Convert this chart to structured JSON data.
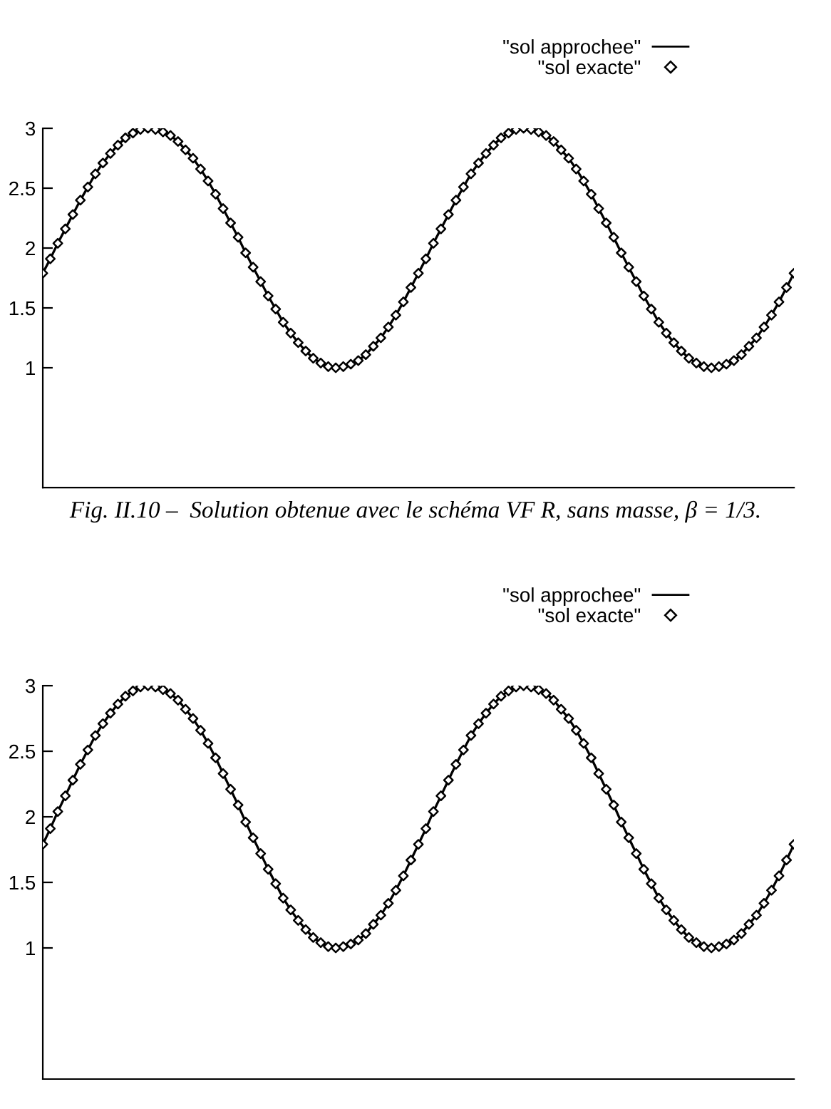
{
  "chart_data": [
    {
      "type": "line",
      "categories": [
        null,
        null,
        null,
        null,
        null,
        null,
        null,
        null,
        null,
        null,
        null,
        null,
        null,
        null,
        null,
        null,
        null,
        null,
        null,
        null,
        null,
        null,
        null,
        null,
        null,
        null,
        null,
        null,
        null,
        null,
        null,
        null,
        null,
        null,
        null,
        null,
        null,
        null,
        null,
        null,
        null,
        null,
        null,
        null,
        null,
        null,
        null,
        null,
        null,
        null,
        null,
        null,
        null,
        null,
        null,
        null,
        null,
        null,
        null,
        null,
        null,
        null,
        null,
        null,
        null,
        null,
        null,
        null,
        null,
        null,
        null,
        null,
        null,
        null,
        null,
        null,
        null,
        null,
        null,
        null,
        null,
        null,
        null,
        null,
        null,
        null,
        null,
        null,
        null,
        null,
        null,
        null,
        null,
        null,
        null,
        null,
        null,
        null,
        null,
        null,
        null
      ],
      "series": [
        {
          "name": "\"sol approchee\"",
          "color": "#000000",
          "values": [
            1.79,
            1.91,
            2.04,
            2.16,
            2.28,
            2.4,
            2.51,
            2.62,
            2.71,
            2.79,
            2.86,
            2.92,
            2.96,
            2.99,
            3.0,
            2.99,
            2.97,
            2.94,
            2.89,
            2.82,
            2.75,
            2.66,
            2.56,
            2.45,
            2.33,
            2.21,
            2.09,
            1.96,
            1.84,
            1.72,
            1.6,
            1.49,
            1.38,
            1.29,
            1.21,
            1.14,
            1.08,
            1.04,
            1.01,
            1.0,
            1.01,
            1.03,
            1.06,
            1.11,
            1.18,
            1.25,
            1.34,
            1.44,
            1.55,
            1.67,
            1.79,
            1.91,
            2.04,
            2.16,
            2.28,
            2.4,
            2.51,
            2.62,
            2.71,
            2.79,
            2.86,
            2.92,
            2.96,
            2.99,
            3.0,
            2.99,
            2.97,
            2.94,
            2.89,
            2.82,
            2.75,
            2.66,
            2.56,
            2.45,
            2.33,
            2.21,
            2.09,
            1.96,
            1.84,
            1.72,
            1.6,
            1.49,
            1.38,
            1.29,
            1.21,
            1.14,
            1.08,
            1.04,
            1.01,
            1.0,
            1.01,
            1.03,
            1.06,
            1.11,
            1.18,
            1.25,
            1.34,
            1.44,
            1.55,
            1.67,
            1.79
          ]
        },
        {
          "name": "\"sol exacte\"",
          "type": "scatter",
          "marker": "diamond",
          "color": "#000000",
          "values": [
            1.79,
            1.91,
            2.04,
            2.16,
            2.28,
            2.4,
            2.51,
            2.62,
            2.71,
            2.79,
            2.86,
            2.92,
            2.96,
            2.99,
            3.0,
            2.99,
            2.97,
            2.94,
            2.89,
            2.82,
            2.75,
            2.66,
            2.56,
            2.45,
            2.33,
            2.21,
            2.09,
            1.96,
            1.84,
            1.72,
            1.6,
            1.49,
            1.38,
            1.29,
            1.21,
            1.14,
            1.08,
            1.04,
            1.01,
            1.0,
            1.01,
            1.03,
            1.06,
            1.11,
            1.18,
            1.25,
            1.34,
            1.44,
            1.55,
            1.67,
            1.79,
            1.91,
            2.04,
            2.16,
            2.28,
            2.4,
            2.51,
            2.62,
            2.71,
            2.79,
            2.86,
            2.92,
            2.96,
            2.99,
            3.0,
            2.99,
            2.97,
            2.94,
            2.89,
            2.82,
            2.75,
            2.66,
            2.56,
            2.45,
            2.33,
            2.21,
            2.09,
            1.96,
            1.84,
            1.72,
            1.6,
            1.49,
            1.38,
            1.29,
            1.21,
            1.14,
            1.08,
            1.04,
            1.01,
            1.0,
            1.01,
            1.03,
            1.06,
            1.11,
            1.18,
            1.25,
            1.34,
            1.44,
            1.55,
            1.67,
            1.79
          ]
        }
      ],
      "ylim": [
        0,
        3
      ],
      "yticks": [
        1,
        1.5,
        2,
        2.5,
        3
      ],
      "grid": false,
      "legend": "top right",
      "tick_labels": "y",
      "annotations": [
        "Fig. II.10 –  Solution obtenue avec le schéma VF R, sans masse, β = 1/3."
      ]
    },
    {
      "type": "line",
      "categories": [
        null,
        null,
        null,
        null,
        null,
        null,
        null,
        null,
        null,
        null,
        null,
        null,
        null,
        null,
        null,
        null,
        null,
        null,
        null,
        null,
        null,
        null,
        null,
        null,
        null,
        null,
        null,
        null,
        null,
        null,
        null,
        null,
        null,
        null,
        null,
        null,
        null,
        null,
        null,
        null,
        null,
        null,
        null,
        null,
        null,
        null,
        null,
        null,
        null,
        null,
        null,
        null,
        null,
        null,
        null,
        null,
        null,
        null,
        null,
        null,
        null,
        null,
        null,
        null,
        null,
        null,
        null,
        null,
        null,
        null,
        null,
        null,
        null,
        null,
        null,
        null,
        null,
        null,
        null,
        null,
        null,
        null,
        null,
        null,
        null,
        null,
        null,
        null,
        null,
        null,
        null,
        null,
        null,
        null,
        null,
        null,
        null,
        null,
        null,
        null,
        null
      ],
      "series": [
        {
          "name": "\"sol approchee\"",
          "color": "#000000",
          "values": [
            1.79,
            1.91,
            2.04,
            2.16,
            2.28,
            2.4,
            2.51,
            2.62,
            2.71,
            2.79,
            2.86,
            2.92,
            2.96,
            2.99,
            3.0,
            2.99,
            2.97,
            2.94,
            2.89,
            2.82,
            2.75,
            2.66,
            2.56,
            2.45,
            2.33,
            2.21,
            2.09,
            1.96,
            1.84,
            1.72,
            1.6,
            1.49,
            1.38,
            1.29,
            1.21,
            1.14,
            1.08,
            1.04,
            1.01,
            1.0,
            1.01,
            1.03,
            1.06,
            1.11,
            1.18,
            1.25,
            1.34,
            1.44,
            1.55,
            1.67,
            1.79,
            1.91,
            2.04,
            2.16,
            2.28,
            2.4,
            2.51,
            2.62,
            2.71,
            2.79,
            2.86,
            2.92,
            2.96,
            2.99,
            3.0,
            2.99,
            2.97,
            2.94,
            2.89,
            2.82,
            2.75,
            2.66,
            2.56,
            2.45,
            2.33,
            2.21,
            2.09,
            1.96,
            1.84,
            1.72,
            1.6,
            1.49,
            1.38,
            1.29,
            1.21,
            1.14,
            1.08,
            1.04,
            1.01,
            1.0,
            1.01,
            1.03,
            1.06,
            1.11,
            1.18,
            1.25,
            1.34,
            1.44,
            1.55,
            1.67,
            1.79
          ]
        },
        {
          "name": "\"sol exacte\"",
          "type": "scatter",
          "marker": "diamond",
          "color": "#000000",
          "values": [
            1.79,
            1.91,
            2.04,
            2.16,
            2.28,
            2.4,
            2.51,
            2.62,
            2.71,
            2.79,
            2.86,
            2.92,
            2.96,
            2.99,
            3.0,
            2.99,
            2.97,
            2.94,
            2.89,
            2.82,
            2.75,
            2.66,
            2.56,
            2.45,
            2.33,
            2.21,
            2.09,
            1.96,
            1.84,
            1.72,
            1.6,
            1.49,
            1.38,
            1.29,
            1.21,
            1.14,
            1.08,
            1.04,
            1.01,
            1.0,
            1.01,
            1.03,
            1.06,
            1.11,
            1.18,
            1.25,
            1.34,
            1.44,
            1.55,
            1.67,
            1.79,
            1.91,
            2.04,
            2.16,
            2.28,
            2.4,
            2.51,
            2.62,
            2.71,
            2.79,
            2.86,
            2.92,
            2.96,
            2.99,
            3.0,
            2.99,
            2.97,
            2.94,
            2.89,
            2.82,
            2.75,
            2.66,
            2.56,
            2.45,
            2.33,
            2.21,
            2.09,
            1.96,
            1.84,
            1.72,
            1.6,
            1.49,
            1.38,
            1.29,
            1.21,
            1.14,
            1.08,
            1.04,
            1.01,
            1.0,
            1.01,
            1.03,
            1.06,
            1.11,
            1.18,
            1.25,
            1.34,
            1.44,
            1.55,
            1.67,
            1.79
          ]
        }
      ],
      "ylim": [
        0,
        3
      ],
      "yticks": [
        1,
        1.5,
        2,
        2.5,
        3
      ],
      "grid": false,
      "legend": "top right",
      "tick_labels": "y"
    }
  ]
}
